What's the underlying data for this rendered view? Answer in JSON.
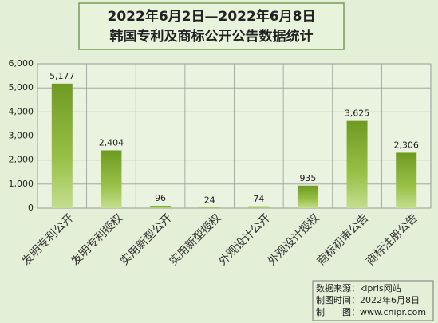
{
  "chart_data": {
    "type": "bar",
    "title": "2022年6月2日—2022年6月8日",
    "subtitle": "韩国专利及商标公开公告数据统计",
    "categories": [
      "发明专利公开",
      "发明专利授权",
      "实用新型公开",
      "实用新型授权",
      "外观设计公开",
      "外观设计授权",
      "商标初审公告",
      "商标注册公告"
    ],
    "values": [
      5177,
      2404,
      96,
      24,
      74,
      935,
      3625,
      2306
    ],
    "value_labels": [
      "5,177",
      "2,404",
      "96",
      "24",
      "74",
      "935",
      "3,625",
      "2,306"
    ],
    "color": "#8db33a",
    "ylim": [
      0,
      6000
    ],
    "yticks": [
      0,
      {
        "value": 1000,
        "label": "1,000"
      },
      {
        "value": 2000,
        "label": "2,000"
      },
      {
        "value": 3000,
        "label": "3,000"
      },
      {
        "value": 4000,
        "label": "4,000"
      },
      {
        "value": 5000,
        "label": "5,000"
      },
      {
        "value": 6000,
        "label": "6,000"
      }
    ],
    "grid": true,
    "notes": [
      "数据来源：kipris网站",
      "制图时间：2022年6月8日",
      "制　　图：www.cnipr.com"
    ]
  }
}
